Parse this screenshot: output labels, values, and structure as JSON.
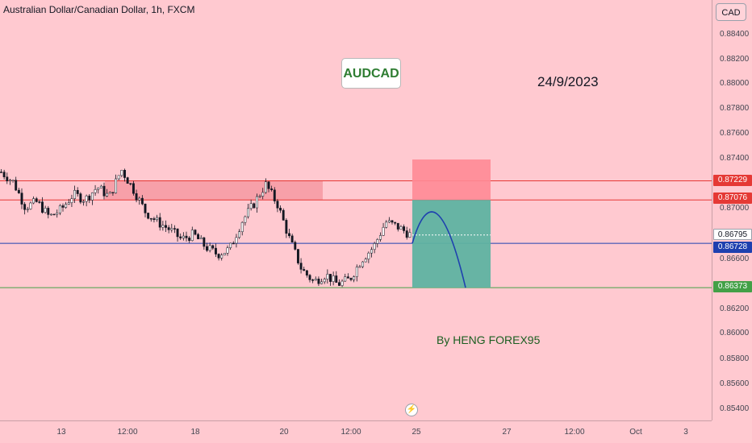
{
  "header": {
    "symbol_title": "Australian Dollar/Canadian Dollar, 1h, FXCM",
    "currency_button": "CAD"
  },
  "annotations": {
    "pair_label": "AUDCAD",
    "date_label": "24/9/2023",
    "author_label": "By HENG FOREX95"
  },
  "price_axis": {
    "ticks": [
      "0.88400",
      "0.88200",
      "0.88000",
      "0.87800",
      "0.87600",
      "0.87400",
      "0.87000",
      "0.86600",
      "0.86200",
      "0.86000",
      "0.85800",
      "0.85600",
      "0.85400"
    ],
    "tags": [
      {
        "label": "0.87229",
        "color": "#e53935"
      },
      {
        "label": "0.87076",
        "color": "#e53935"
      },
      {
        "label": "0.86795",
        "color": "#ffffff",
        "text_color": "#131722"
      },
      {
        "label": "0.86728",
        "color": "#1e40af"
      },
      {
        "label": "0.86373",
        "color": "#43a047"
      }
    ]
  },
  "time_axis": {
    "ticks": [
      "13",
      "12:00",
      "18",
      "20",
      "12:00",
      "25",
      "27",
      "12:00",
      "Oct",
      "3"
    ]
  },
  "colors": {
    "background": "#ffc9d0",
    "resistance_line": "#e53935",
    "support_line": "#43a047",
    "entry_line": "#1e40af",
    "stop_zone": "#ff8a95",
    "target_zone": "#5fb3a1",
    "curve": "#1e40af"
  },
  "chart_data": {
    "type": "candlestick",
    "symbol": "AUDCAD",
    "interval": "1h",
    "horizontal_levels": [
      0.87229,
      0.87076,
      0.86728,
      0.86373
    ],
    "last_price": 0.86795,
    "trend_close_samples": [
      0.873,
      0.8722,
      0.8702,
      0.8706,
      0.8694,
      0.87,
      0.8712,
      0.8708,
      0.8718,
      0.871,
      0.8732,
      0.8716,
      0.8698,
      0.869,
      0.8684,
      0.8676,
      0.868,
      0.867,
      0.8664,
      0.8668,
      0.869,
      0.8704,
      0.872,
      0.8704,
      0.8676,
      0.8652,
      0.8642,
      0.8648,
      0.864,
      0.8644,
      0.866,
      0.867,
      0.869,
      0.8686,
      0.868
    ],
    "position": {
      "entry": 0.86728,
      "stop": 0.874,
      "target": 0.86373,
      "stop_top_range": [
        0.87076,
        0.874
      ]
    }
  }
}
